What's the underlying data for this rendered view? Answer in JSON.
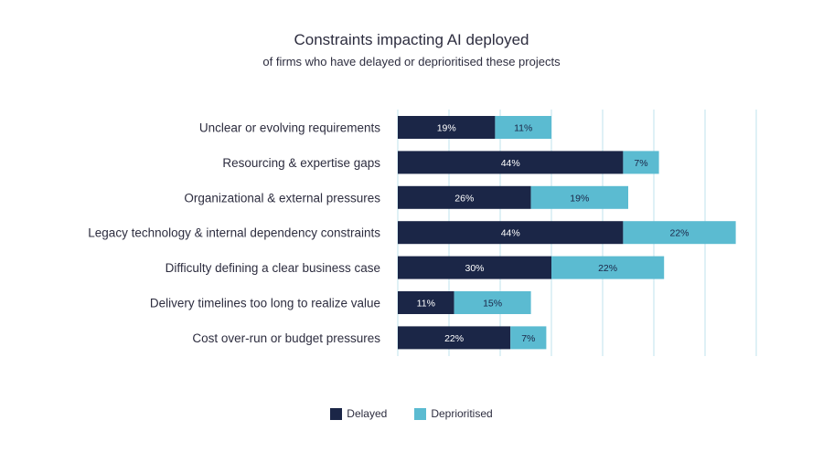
{
  "chart_data": {
    "type": "bar",
    "orientation": "horizontal",
    "stacked": true,
    "title": "Constraints impacting AI deployed",
    "subtitle": "of firms who have delayed or deprioritised these projects",
    "categories": [
      "Unclear or evolving requirements",
      "Resourcing & expertise gaps",
      "Organizational & external pressures",
      "Legacy technology & internal dependency constraints",
      "Difficulty defining a clear business case",
      "Delivery timelines too long to realize value",
      "Cost over-run or budget pressures"
    ],
    "series": [
      {
        "name": "Delayed",
        "color": "#1b2647",
        "values": [
          19,
          44,
          26,
          44,
          30,
          11,
          22
        ],
        "labels": [
          "19%",
          "44%",
          "26%",
          "44%",
          "30%",
          "11%",
          "22%"
        ]
      },
      {
        "name": "Deprioritised",
        "color": "#5bbbd1",
        "values": [
          11,
          7,
          19,
          22,
          22,
          15,
          7
        ],
        "labels": [
          "11%",
          "7%",
          "19%",
          "22%",
          "22%",
          "15%",
          "7%"
        ]
      }
    ],
    "xlim": [
      0,
      70
    ],
    "grid": true,
    "legend": "bottom-center"
  }
}
